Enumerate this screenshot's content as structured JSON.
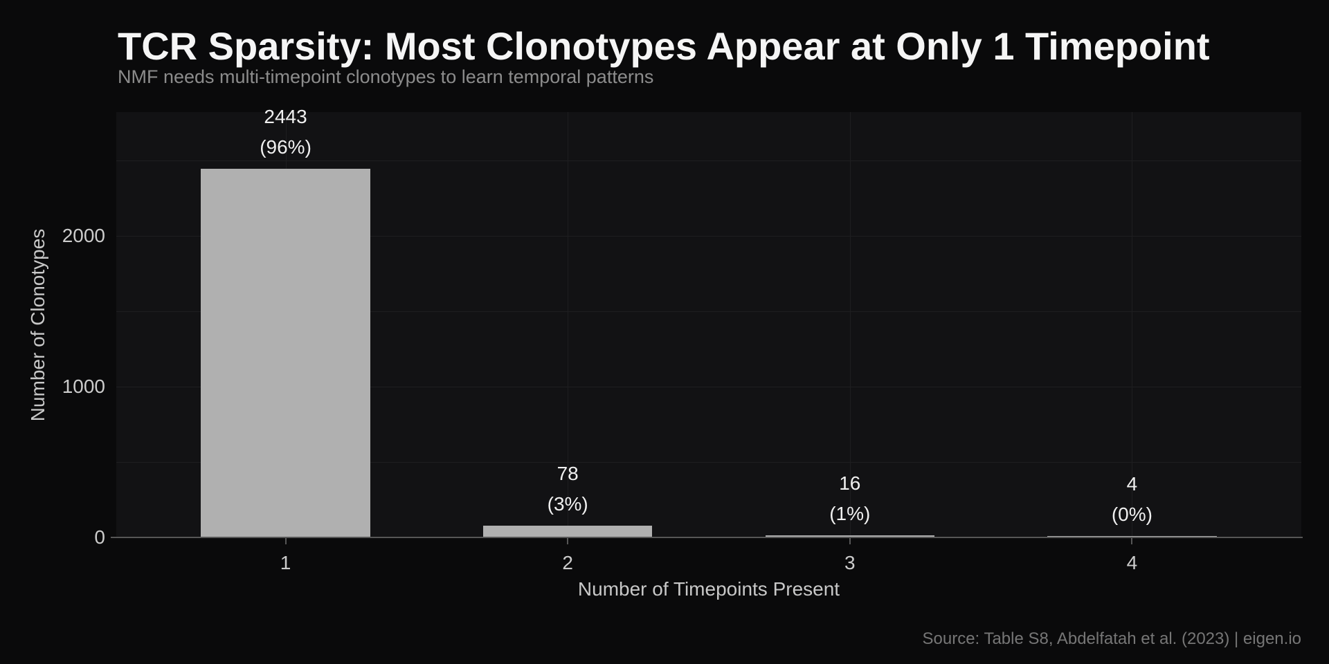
{
  "page": {
    "background": "#0a0a0b"
  },
  "header": {
    "title": "TCR Sparsity: Most Clonotypes Appear at Only 1 Timepoint",
    "subtitle": "NMF needs multi-timepoint clonotypes to learn temporal patterns"
  },
  "chart_data": {
    "type": "bar",
    "title": "TCR Sparsity: Most Clonotypes Appear at Only 1 Timepoint",
    "subtitle": "NMF needs multi-timepoint clonotypes to learn temporal patterns",
    "categories": [
      "1",
      "2",
      "3",
      "4"
    ],
    "values": [
      2443,
      78,
      16,
      4
    ],
    "percent_labels": [
      "(96%)",
      "(3%)",
      "(1%)",
      "(0%)"
    ],
    "xlabel": "Number of Timepoints Present",
    "ylabel": "Number of Clonotypes",
    "ylim": [
      0,
      2820
    ],
    "ytick_values": [
      0,
      1000,
      2000
    ],
    "ytick_labels": [
      "0",
      "1000",
      "2000"
    ],
    "grid": "on",
    "grid_interval": 500,
    "legend": "none",
    "bar_color": "#b0b0b0",
    "plot_background": "#121214",
    "grid_color": "#1e1e20",
    "label_color": "#f0f0f0",
    "tick_color": "#cccccc"
  },
  "footer": {
    "source": "Source: Table S8, Abdelfatah et al. (2023) | eigen.io"
  }
}
